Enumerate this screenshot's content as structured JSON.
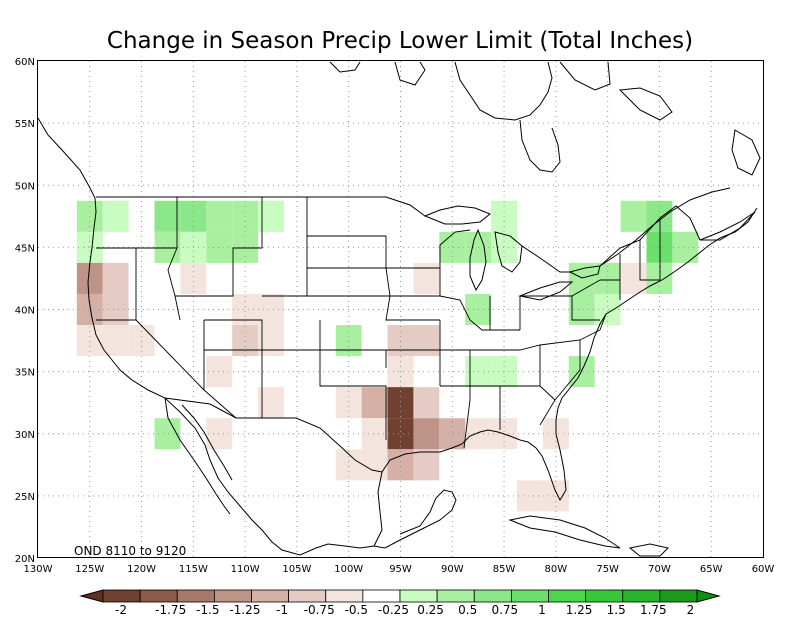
{
  "title": "Change in Season Precip Lower Limit (Total Inches)",
  "period_label": "OND 8110 to 9120",
  "lat_labels": [
    "20N",
    "25N",
    "30N",
    "35N",
    "40N",
    "45N",
    "50N",
    "55N",
    "60N"
  ],
  "lon_labels": [
    "130W",
    "125W",
    "120W",
    "115W",
    "110W",
    "105W",
    "100W",
    "95W",
    "90W",
    "85W",
    "80W",
    "75W",
    "70W",
    "65W",
    "60W"
  ],
  "colorbar": {
    "labels": [
      "-2",
      "-1.75",
      "-1.5",
      "-1.25",
      "-1",
      "-0.75",
      "-0.5",
      "-0.25",
      "0.25",
      "0.5",
      "0.75",
      "1",
      "1.25",
      "1.5",
      "1.75",
      "2"
    ],
    "colors": [
      "#704030",
      "#8c5a48",
      "#a8786a",
      "#bf9488",
      "#d4b0a6",
      "#e4ccc4",
      "#f3e4de",
      "#ffffff",
      "#c8fcc0",
      "#a8f0a0",
      "#8ae88a",
      "#6ce06c",
      "#4cd64c",
      "#36c836",
      "#28b428",
      "#1a9a1a"
    ],
    "under_color": "#603020",
    "over_color": "#109010"
  },
  "grid": true,
  "map_data": {
    "extent": {
      "lon": [
        -130,
        -60
      ],
      "lat": [
        20,
        60
      ]
    },
    "cell_deg": 2.5,
    "cells": [
      {
        "lon": -125,
        "lat": 47.5,
        "v": 0.6
      },
      {
        "lon": -125,
        "lat": 45,
        "v": 0.4
      },
      {
        "lon": -122.5,
        "lat": 47.5,
        "v": 0.4
      },
      {
        "lon": -117.5,
        "lat": 47.5,
        "v": 0.8
      },
      {
        "lon": -115,
        "lat": 47.5,
        "v": 0.9
      },
      {
        "lon": -112.5,
        "lat": 47.5,
        "v": 0.5
      },
      {
        "lon": -110,
        "lat": 47.5,
        "v": 0.5
      },
      {
        "lon": -107.5,
        "lat": 47.5,
        "v": 0.4
      },
      {
        "lon": -117.5,
        "lat": 45,
        "v": 0.6
      },
      {
        "lon": -115,
        "lat": 45,
        "v": 0.4
      },
      {
        "lon": -112.5,
        "lat": 45,
        "v": 0.6
      },
      {
        "lon": -110,
        "lat": 45,
        "v": 0.7
      },
      {
        "lon": -125,
        "lat": 42.5,
        "v": -1.1
      },
      {
        "lon": -122.5,
        "lat": 42.5,
        "v": -0.6
      },
      {
        "lon": -125,
        "lat": 40,
        "v": -0.9
      },
      {
        "lon": -122.5,
        "lat": 40,
        "v": -0.6
      },
      {
        "lon": -125,
        "lat": 37.5,
        "v": -0.4
      },
      {
        "lon": -122.5,
        "lat": 37.5,
        "v": -0.3
      },
      {
        "lon": -120,
        "lat": 37.5,
        "v": -0.3
      },
      {
        "lon": -115,
        "lat": 42.5,
        "v": -0.3
      },
      {
        "lon": -110,
        "lat": 40,
        "v": -0.3
      },
      {
        "lon": -107.5,
        "lat": 40,
        "v": -0.4
      },
      {
        "lon": -110,
        "lat": 37.5,
        "v": -0.6
      },
      {
        "lon": -107.5,
        "lat": 37.5,
        "v": -0.3
      },
      {
        "lon": -112.5,
        "lat": 35,
        "v": -0.3
      },
      {
        "lon": -107.5,
        "lat": 32.5,
        "v": -0.3
      },
      {
        "lon": -112.5,
        "lat": 30,
        "v": -0.3
      },
      {
        "lon": -117.5,
        "lat": 30,
        "v": 0.6
      },
      {
        "lon": -100,
        "lat": 37.5,
        "v": 0.5
      },
      {
        "lon": -92.5,
        "lat": 42.5,
        "v": -0.3
      },
      {
        "lon": -95,
        "lat": 37.5,
        "v": -0.6
      },
      {
        "lon": -92.5,
        "lat": 37.5,
        "v": -0.6
      },
      {
        "lon": -95,
        "lat": 35,
        "v": -0.5
      },
      {
        "lon": -100,
        "lat": 32.5,
        "v": -0.4
      },
      {
        "lon": -97.5,
        "lat": 32.5,
        "v": -1.0
      },
      {
        "lon": -95,
        "lat": 32.5,
        "v": -1.8
      },
      {
        "lon": -92.5,
        "lat": 32.5,
        "v": -0.7
      },
      {
        "lon": -97.5,
        "lat": 30,
        "v": -0.5
      },
      {
        "lon": -95,
        "lat": 30,
        "v": -1.9
      },
      {
        "lon": -92.5,
        "lat": 30,
        "v": -1.2
      },
      {
        "lon": -90,
        "lat": 30,
        "v": -0.8
      },
      {
        "lon": -87.5,
        "lat": 30,
        "v": -0.5
      },
      {
        "lon": -85,
        "lat": 30,
        "v": -0.3
      },
      {
        "lon": -100,
        "lat": 27.5,
        "v": -0.4
      },
      {
        "lon": -97.5,
        "lat": 27.5,
        "v": -0.5
      },
      {
        "lon": -95,
        "lat": 27.5,
        "v": -0.8
      },
      {
        "lon": -92.5,
        "lat": 27.5,
        "v": -0.6
      },
      {
        "lon": -80,
        "lat": 30,
        "v": -0.3
      },
      {
        "lon": -80,
        "lat": 25,
        "v": -0.5
      },
      {
        "lon": -82.5,
        "lat": 25,
        "v": -0.3
      },
      {
        "lon": -87.5,
        "lat": 35,
        "v": 0.4
      },
      {
        "lon": -85,
        "lat": 35,
        "v": 0.3
      },
      {
        "lon": -77.5,
        "lat": 35,
        "v": 0.5
      },
      {
        "lon": -90,
        "lat": 45,
        "v": 0.5
      },
      {
        "lon": -87.5,
        "lat": 45,
        "v": 0.6
      },
      {
        "lon": -85,
        "lat": 45,
        "v": 0.3
      },
      {
        "lon": -85,
        "lat": 47.5,
        "v": 0.4
      },
      {
        "lon": -87.5,
        "lat": 40,
        "v": 0.6
      },
      {
        "lon": -77.5,
        "lat": 42.5,
        "v": 0.5
      },
      {
        "lon": -75,
        "lat": 42.5,
        "v": 0.6
      },
      {
        "lon": -77.5,
        "lat": 40,
        "v": 0.6
      },
      {
        "lon": -75,
        "lat": 40,
        "v": 0.4
      },
      {
        "lon": -72.5,
        "lat": 42.5,
        "v": -0.3
      },
      {
        "lon": -70,
        "lat": 47.5,
        "v": 0.8
      },
      {
        "lon": -72.5,
        "lat": 47.5,
        "v": 0.5
      },
      {
        "lon": -70,
        "lat": 45,
        "v": 1.1
      },
      {
        "lon": -67.5,
        "lat": 45,
        "v": 0.5
      },
      {
        "lon": -70,
        "lat": 42.5,
        "v": 0.6
      }
    ]
  }
}
